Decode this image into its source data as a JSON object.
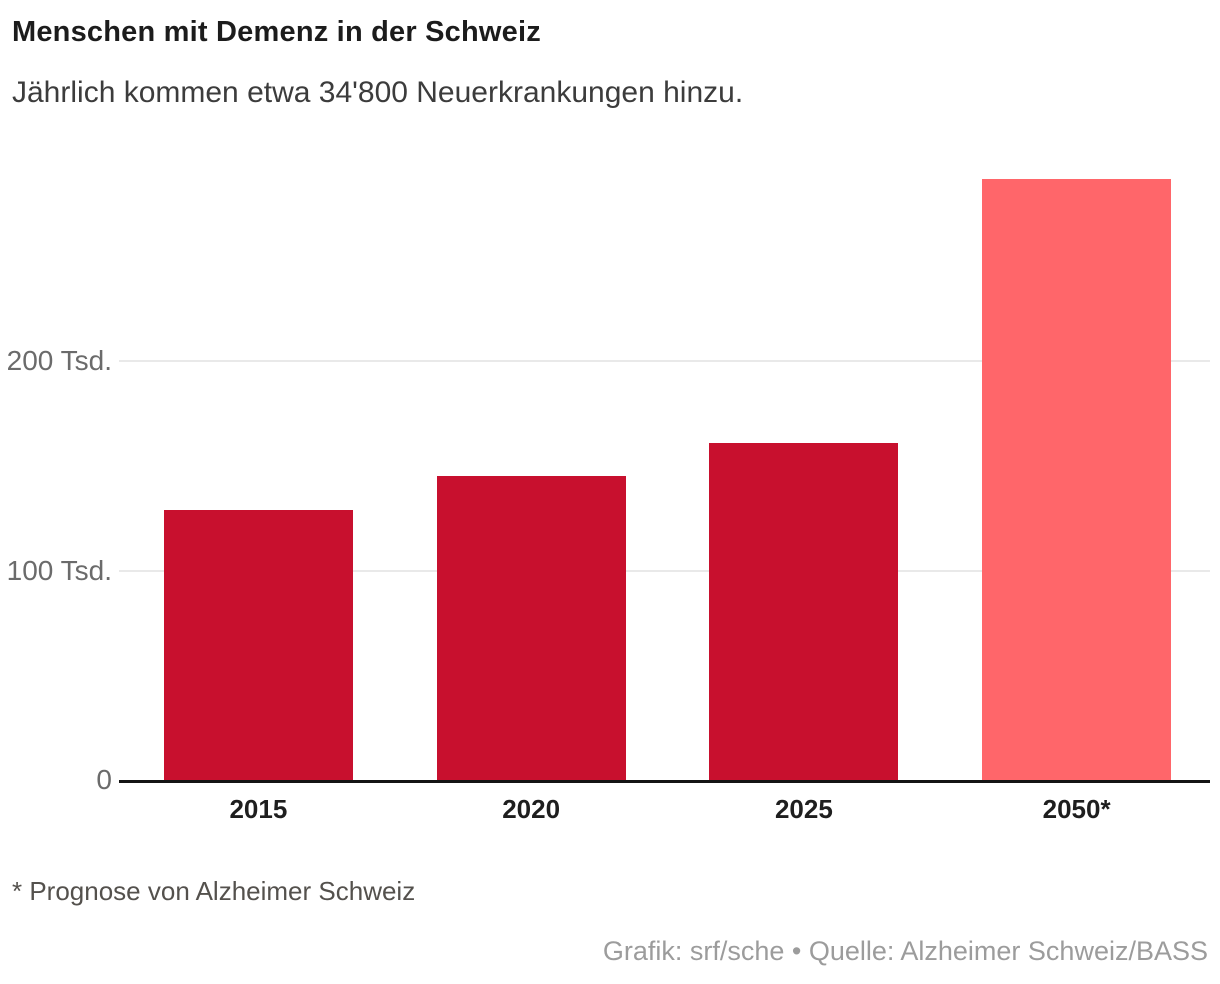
{
  "header": {
    "title": "Menschen mit Demenz in der Schweiz",
    "subtitle": "Jährlich kommen etwa 34'800 Neuerkrankungen hinzu."
  },
  "chart_data": {
    "type": "bar",
    "categories": [
      "2015",
      "2020",
      "2025",
      "2050*"
    ],
    "values": [
      129,
      145,
      161,
      287
    ],
    "unit": "Tsd. (thousands of people)",
    "title": "Menschen mit Demenz in der Schweiz",
    "xlabel": "",
    "ylabel": "",
    "ylim": [
      0,
      297
    ],
    "yticks": [
      {
        "value": 0,
        "label": "0"
      },
      {
        "value": 100,
        "label": "100 Tsd."
      },
      {
        "value": 200,
        "label": "200 Tsd."
      }
    ],
    "grid": "horizontal",
    "legend": "none",
    "bar_colors": [
      "#C8102E",
      "#C8102E",
      "#C8102E",
      "#FF666A"
    ],
    "note": "2050 bar is a forecast, shown in lighter red"
  },
  "colors": {
    "bar_red": "#C8102E",
    "bar_forecast_pink": "#FF666A",
    "axis_line": "#141414",
    "gridline": "#E9E9E9",
    "tick_text": "#6B6B6B",
    "credit_text": "#9C9C9C"
  },
  "footer": {
    "footnote": "* Prognose von Alzheimer Schweiz",
    "credit": "Grafik: srf/sche • Quelle: Alzheimer Schweiz/BASS"
  }
}
